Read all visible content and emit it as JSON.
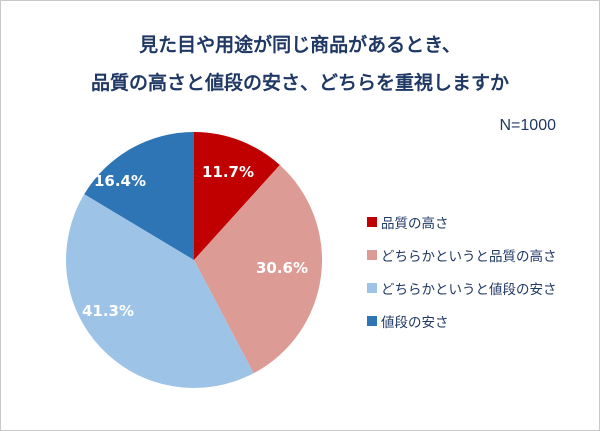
{
  "title_line1": "見た目や用途が同じ商品があるとき、",
  "title_line2": "品質の高さと値段の安さ、どちらを重視しますか",
  "sample": "N=1000",
  "chart_data": {
    "type": "pie",
    "title": "見た目や用途が同じ商品があるとき、品質の高さと値段の安さ、どちらを重視しますか",
    "subtitle": "N=1000",
    "categories": [
      "品質の高さ",
      "どちらかというと品質の高さ",
      "どちらかというと値段の安さ",
      "値段の安さ"
    ],
    "values": [
      11.7,
      30.6,
      41.3,
      16.4
    ],
    "labels": [
      "11.7%",
      "30.6%",
      "41.3%",
      "16.4%"
    ],
    "colors": [
      "#c00000",
      "#dc9b94",
      "#9dc3e6",
      "#2e75b6"
    ],
    "legend_position": "right"
  }
}
